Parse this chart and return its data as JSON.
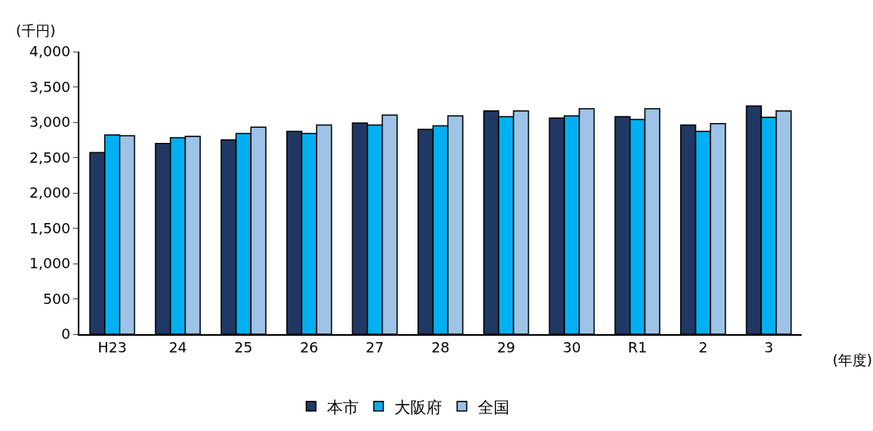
{
  "chart_data": {
    "type": "bar",
    "ylabel": "(千円)",
    "xlabel": "(年度)",
    "categories": [
      "H23",
      "24",
      "25",
      "26",
      "27",
      "28",
      "29",
      "30",
      "R1",
      "2",
      "3"
    ],
    "series": [
      {
        "name": "本市",
        "color": "#203864",
        "values": [
          2570,
          2700,
          2750,
          2870,
          2990,
          2900,
          3160,
          3060,
          3080,
          2960,
          3230
        ]
      },
      {
        "name": "大阪府",
        "color": "#00b0f0",
        "values": [
          2820,
          2780,
          2840,
          2840,
          2960,
          2950,
          3080,
          3090,
          3040,
          2870,
          3070
        ]
      },
      {
        "name": "全国",
        "color": "#9dc3e6",
        "values": [
          2810,
          2800,
          2930,
          2960,
          3100,
          3090,
          3160,
          3190,
          3190,
          2980,
          3160
        ]
      }
    ],
    "ylim": [
      0,
      4000
    ],
    "yticks": [
      {
        "value": 0,
        "label": "0"
      },
      {
        "value": 500,
        "label": "500"
      },
      {
        "value": 1000,
        "label": "1,000"
      },
      {
        "value": 1500,
        "label": "1,500"
      },
      {
        "value": 2000,
        "label": "2,000"
      },
      {
        "value": 2500,
        "label": "2,500"
      },
      {
        "value": 3000,
        "label": "3,000"
      },
      {
        "value": 3500,
        "label": "3,500"
      },
      {
        "value": 4000,
        "label": "4,000"
      }
    ],
    "legend": "bottom"
  }
}
